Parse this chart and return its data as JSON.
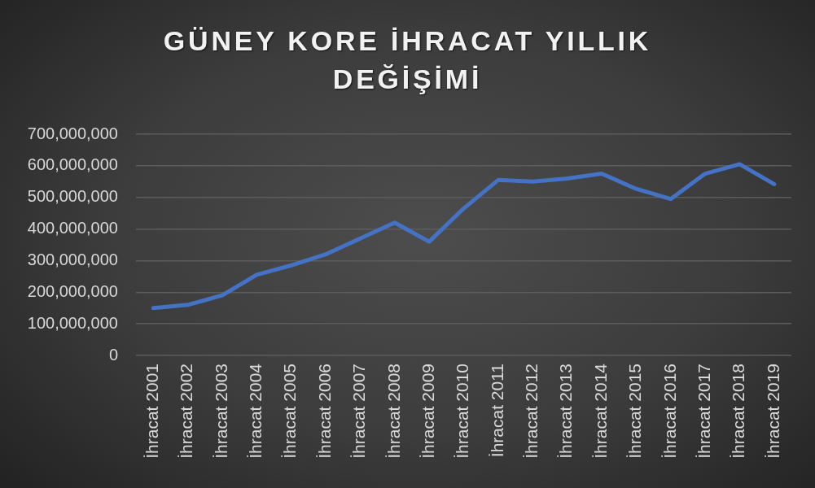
{
  "chart_data": {
    "type": "line",
    "title": "GÜNEY KORE İHRACAT YILLIK DEĞİŞİMİ",
    "categories": [
      "İhracat 2001",
      "İhracat 2002",
      "İhracat 2003",
      "İhracat 2004",
      "İhracat 2005",
      "İhracat 2006",
      "İhracat 2007",
      "İhracat 2008",
      "İhracat 2009",
      "İhracat 2010",
      "İhracat 2011",
      "İhracat 2012",
      "İhracat 2013",
      "İhracat 2014",
      "İhracat 2015",
      "İhracat 2016",
      "İhracat 2017",
      "İhracat 2018",
      "İhracat 2019"
    ],
    "values": [
      150000000,
      160000000,
      190000000,
      255000000,
      285000000,
      320000000,
      370000000,
      420000000,
      360000000,
      465000000,
      555000000,
      550000000,
      560000000,
      575000000,
      527000000,
      495000000,
      575000000,
      605000000,
      542000000
    ],
    "color": "#4472c4",
    "ylim": [
      0,
      700000000
    ],
    "yticks": [
      {
        "value": 0,
        "label": "0"
      },
      {
        "value": 100000000,
        "label": "100,000,000"
      },
      {
        "value": 200000000,
        "label": "200,000,000"
      },
      {
        "value": 300000000,
        "label": "300,000,000"
      },
      {
        "value": 400000000,
        "label": "400,000,000"
      },
      {
        "value": 500000000,
        "label": "500,000,000"
      },
      {
        "value": 600000000,
        "label": "600,000,000"
      },
      {
        "value": 700000000,
        "label": "700,000,000"
      }
    ],
    "grid": "y",
    "marker": "none",
    "line_style": "solid"
  }
}
